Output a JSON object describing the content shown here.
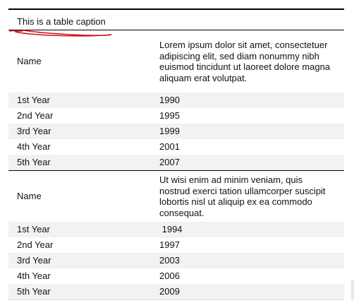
{
  "table": {
    "caption": "This is a table caption",
    "groups": [
      {
        "name_label": "Name",
        "description": "Lorem ipsum dolor sit amet, consectetuer adipiscing elit, sed diam nonummy nibh euismod tincidunt ut laoreet dolore magna aliquam erat volutpat.",
        "rows": [
          {
            "label": "1st Year",
            "value": "1990"
          },
          {
            "label": "2nd Year",
            "value": "1995"
          },
          {
            "label": "3rd Year",
            "value": "1999"
          },
          {
            "label": "4th Year",
            "value": "2001"
          },
          {
            "label": "5th Year",
            "value": "2007"
          }
        ]
      },
      {
        "name_label": "Name",
        "description": "Ut wisi enim ad minim veniam, quis nostrud exerci tation ullamcorper suscipit lobortis nisl ut aliquip ex ea commodo consequat.",
        "rows": [
          {
            "label": "1st Year",
            "value": " 1994"
          },
          {
            "label": "2nd Year",
            "value": "1997"
          },
          {
            "label": "3rd Year",
            "value": "2003"
          },
          {
            "label": "4th Year",
            "value": "2006"
          },
          {
            "label": "5th Year",
            "value": "2009"
          }
        ]
      }
    ]
  },
  "colors": {
    "rule": "#000000",
    "alt_row": "#f2f2f2",
    "annotation_underline": "#d0101a"
  }
}
